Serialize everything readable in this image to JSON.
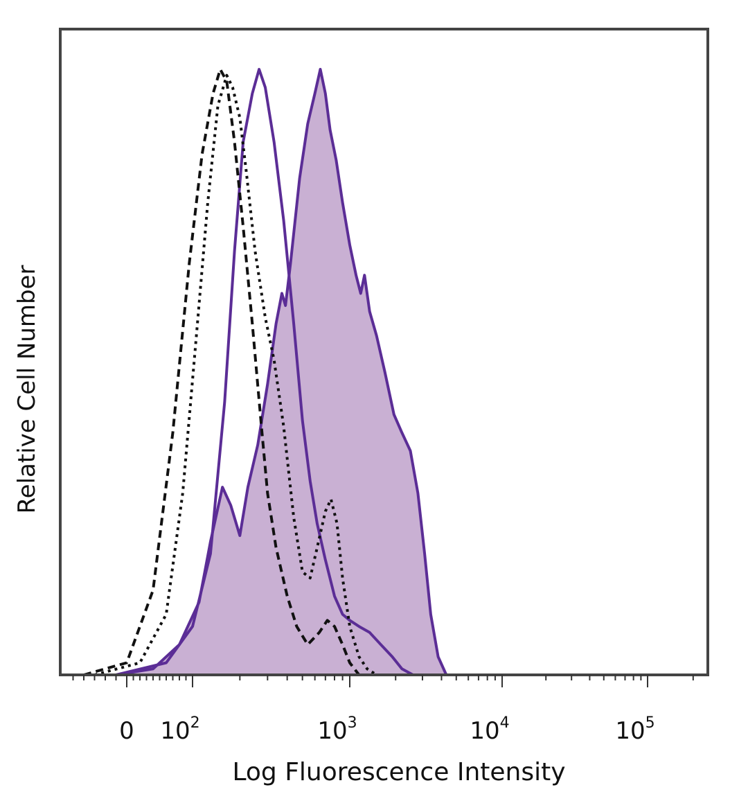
{
  "chart_data": {
    "type": "area",
    "xlabel": "Log Fluorescence Intensity",
    "ylabel": "Relative Cell Number",
    "x_scale": "logicle",
    "xlim": [
      -60,
      250000
    ],
    "ylim": [
      0,
      1
    ],
    "grid": false,
    "x_ticks": [
      {
        "value": 0,
        "label": "0"
      },
      {
        "value": 100,
        "label": "10",
        "sup": "2"
      },
      {
        "value": 1000,
        "label": "10",
        "sup": "3"
      },
      {
        "value": 10000,
        "label": "10",
        "sup": "4"
      },
      {
        "value": 100000,
        "label": "10",
        "sup": "5"
      }
    ],
    "colors": {
      "purple_line": "#5b2d96",
      "purple_fill": "#c9b0d3",
      "black_line": "#111111",
      "frame": "#444444"
    },
    "series": [
      {
        "style": "filled-purple",
        "points": [
          [
            -10,
            0
          ],
          [
            40,
            0.01
          ],
          [
            80,
            0.05
          ],
          [
            110,
            0.12
          ],
          [
            130,
            0.22
          ],
          [
            155,
            0.31
          ],
          [
            175,
            0.28
          ],
          [
            200,
            0.23
          ],
          [
            225,
            0.31
          ],
          [
            260,
            0.38
          ],
          [
            300,
            0.48
          ],
          [
            340,
            0.58
          ],
          [
            370,
            0.63
          ],
          [
            390,
            0.61
          ],
          [
            420,
            0.68
          ],
          [
            480,
            0.82
          ],
          [
            540,
            0.91
          ],
          [
            600,
            0.96
          ],
          [
            650,
            1.0
          ],
          [
            700,
            0.96
          ],
          [
            750,
            0.9
          ],
          [
            820,
            0.85
          ],
          [
            900,
            0.78
          ],
          [
            1000,
            0.71
          ],
          [
            1100,
            0.66
          ],
          [
            1180,
            0.63
          ],
          [
            1250,
            0.66
          ],
          [
            1350,
            0.6
          ],
          [
            1500,
            0.56
          ],
          [
            1700,
            0.5
          ],
          [
            1950,
            0.43
          ],
          [
            2200,
            0.4
          ],
          [
            2500,
            0.37
          ],
          [
            2800,
            0.3
          ],
          [
            3100,
            0.2
          ],
          [
            3400,
            0.1
          ],
          [
            3800,
            0.03
          ],
          [
            4300,
            0.0
          ]
        ]
      },
      {
        "style": "solid-purple",
        "points": [
          [
            -10,
            0
          ],
          [
            60,
            0.02
          ],
          [
            100,
            0.08
          ],
          [
            130,
            0.2
          ],
          [
            160,
            0.45
          ],
          [
            185,
            0.7
          ],
          [
            210,
            0.88
          ],
          [
            240,
            0.96
          ],
          [
            265,
            1.0
          ],
          [
            290,
            0.97
          ],
          [
            330,
            0.88
          ],
          [
            380,
            0.75
          ],
          [
            440,
            0.58
          ],
          [
            500,
            0.42
          ],
          [
            560,
            0.32
          ],
          [
            620,
            0.25
          ],
          [
            700,
            0.19
          ],
          [
            800,
            0.13
          ],
          [
            900,
            0.1
          ],
          [
            1000,
            0.09
          ],
          [
            1150,
            0.08
          ],
          [
            1350,
            0.07
          ],
          [
            1600,
            0.05
          ],
          [
            1900,
            0.03
          ],
          [
            2200,
            0.01
          ],
          [
            2600,
            0.0
          ]
        ]
      },
      {
        "style": "dotted-black",
        "points": [
          [
            -30,
            0
          ],
          [
            20,
            0.02
          ],
          [
            60,
            0.1
          ],
          [
            85,
            0.3
          ],
          [
            105,
            0.55
          ],
          [
            125,
            0.78
          ],
          [
            145,
            0.94
          ],
          [
            165,
            0.99
          ],
          [
            180,
            0.97
          ],
          [
            200,
            0.92
          ],
          [
            220,
            0.83
          ],
          [
            250,
            0.7
          ],
          [
            290,
            0.59
          ],
          [
            330,
            0.52
          ],
          [
            380,
            0.41
          ],
          [
            440,
            0.26
          ],
          [
            500,
            0.17
          ],
          [
            560,
            0.16
          ],
          [
            620,
            0.21
          ],
          [
            700,
            0.27
          ],
          [
            760,
            0.29
          ],
          [
            830,
            0.25
          ],
          [
            900,
            0.16
          ],
          [
            1000,
            0.08
          ],
          [
            1150,
            0.03
          ],
          [
            1300,
            0.01
          ],
          [
            1500,
            0.0
          ]
        ]
      },
      {
        "style": "dashed-black",
        "points": [
          [
            -40,
            0
          ],
          [
            0,
            0.02
          ],
          [
            40,
            0.14
          ],
          [
            70,
            0.4
          ],
          [
            95,
            0.68
          ],
          [
            115,
            0.86
          ],
          [
            135,
            0.96
          ],
          [
            150,
            1.0
          ],
          [
            165,
            0.98
          ],
          [
            185,
            0.88
          ],
          [
            210,
            0.74
          ],
          [
            240,
            0.58
          ],
          [
            270,
            0.43
          ],
          [
            300,
            0.3
          ],
          [
            340,
            0.21
          ],
          [
            400,
            0.13
          ],
          [
            460,
            0.08
          ],
          [
            540,
            0.05
          ],
          [
            640,
            0.07
          ],
          [
            720,
            0.09
          ],
          [
            800,
            0.08
          ],
          [
            900,
            0.05
          ],
          [
            1000,
            0.02
          ],
          [
            1150,
            0.0
          ]
        ]
      }
    ]
  }
}
